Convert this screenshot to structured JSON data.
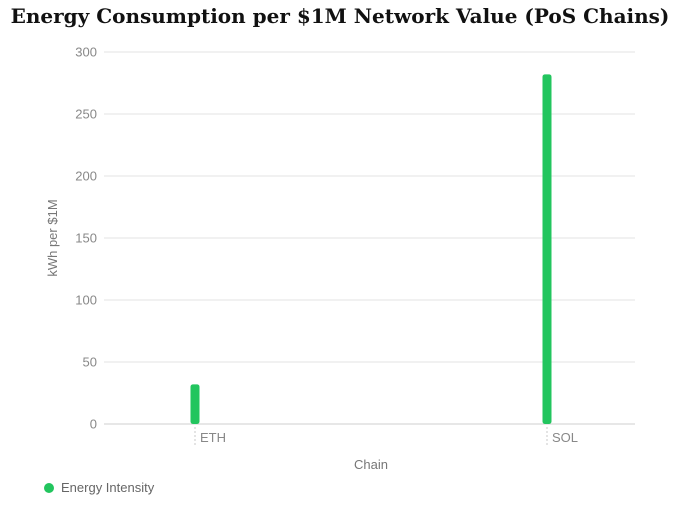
{
  "chart_data": {
    "type": "bar",
    "title": "Energy Consumption per $1M Network Value (PoS Chains)",
    "xlabel": "Chain",
    "ylabel": "kWh per $1M",
    "categories": [
      "ETH",
      "SOL"
    ],
    "series": [
      {
        "name": "Energy Intensity",
        "values": [
          32,
          282
        ],
        "color": "#22c55e"
      }
    ],
    "ylim": [
      0,
      300
    ],
    "yticks": [
      0,
      50,
      100,
      150,
      200,
      250,
      300
    ],
    "grid": true,
    "legend_position": "bottom-left"
  }
}
